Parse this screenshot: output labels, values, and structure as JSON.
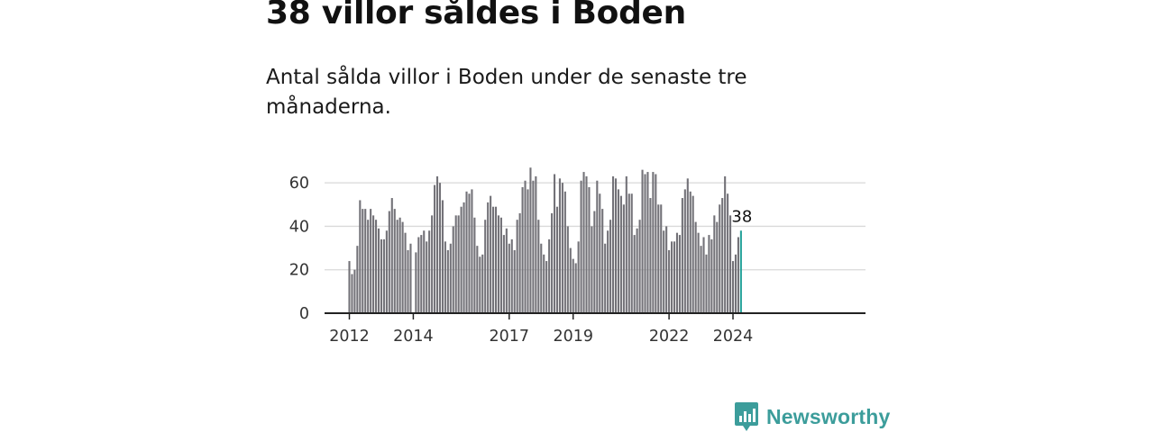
{
  "headline": "38 villor såldes i Boden",
  "subtitle": "Antal sålda villor i Boden under de senaste tre månaderna.",
  "logo": {
    "text": "Newsworthy",
    "icon": "newsworthy-bar-chart-icon"
  },
  "colors": {
    "bar": "#737278",
    "highlight": "#27a39b",
    "grid": "#d9d9d9",
    "axis": "#222222",
    "brand": "#3c9d9b"
  },
  "chart_data": {
    "type": "bar",
    "title": "Antal sålda villor i Boden",
    "xlabel": "",
    "ylabel": "",
    "ylim": [
      0,
      70
    ],
    "yticks": [
      0,
      20,
      40,
      60
    ],
    "start_year": 2012,
    "start_month": 1,
    "x_tick_labels": [
      "2012",
      "2014",
      "2017",
      "2019",
      "2022",
      "2024"
    ],
    "series": [
      {
        "name": "Sålda villor (rullande tre månader)",
        "values": [
          24,
          18,
          20,
          31,
          52,
          48,
          48,
          43,
          48,
          45,
          43,
          39,
          34,
          34,
          38,
          47,
          53,
          48,
          43,
          44,
          42,
          37,
          29,
          32,
          null,
          28,
          35,
          36,
          38,
          33,
          38,
          45,
          59,
          63,
          60,
          52,
          33,
          29,
          32,
          40,
          45,
          45,
          49,
          51,
          56,
          55,
          57,
          44,
          31,
          26,
          27,
          43,
          51,
          54,
          49,
          49,
          45,
          44,
          36,
          39,
          32,
          34,
          29,
          43,
          46,
          58,
          61,
          57,
          67,
          61,
          63,
          43,
          32,
          27,
          24,
          34,
          46,
          64,
          49,
          62,
          60,
          56,
          40,
          30,
          25,
          23,
          33,
          61,
          65,
          63,
          58,
          40,
          47,
          61,
          55,
          48,
          32,
          38,
          43,
          63,
          62,
          57,
          54,
          50,
          63,
          55,
          55,
          36,
          39,
          43,
          66,
          64,
          65,
          53,
          65,
          64,
          50,
          50,
          38,
          40,
          29,
          33,
          33,
          37,
          36,
          53,
          57,
          62,
          56,
          54,
          42,
          37,
          31,
          35,
          27,
          36,
          34,
          45,
          42,
          50,
          53,
          63,
          55,
          45,
          24,
          27,
          35,
          38
        ]
      }
    ],
    "highlight_last": true,
    "last_value_label": "38"
  }
}
